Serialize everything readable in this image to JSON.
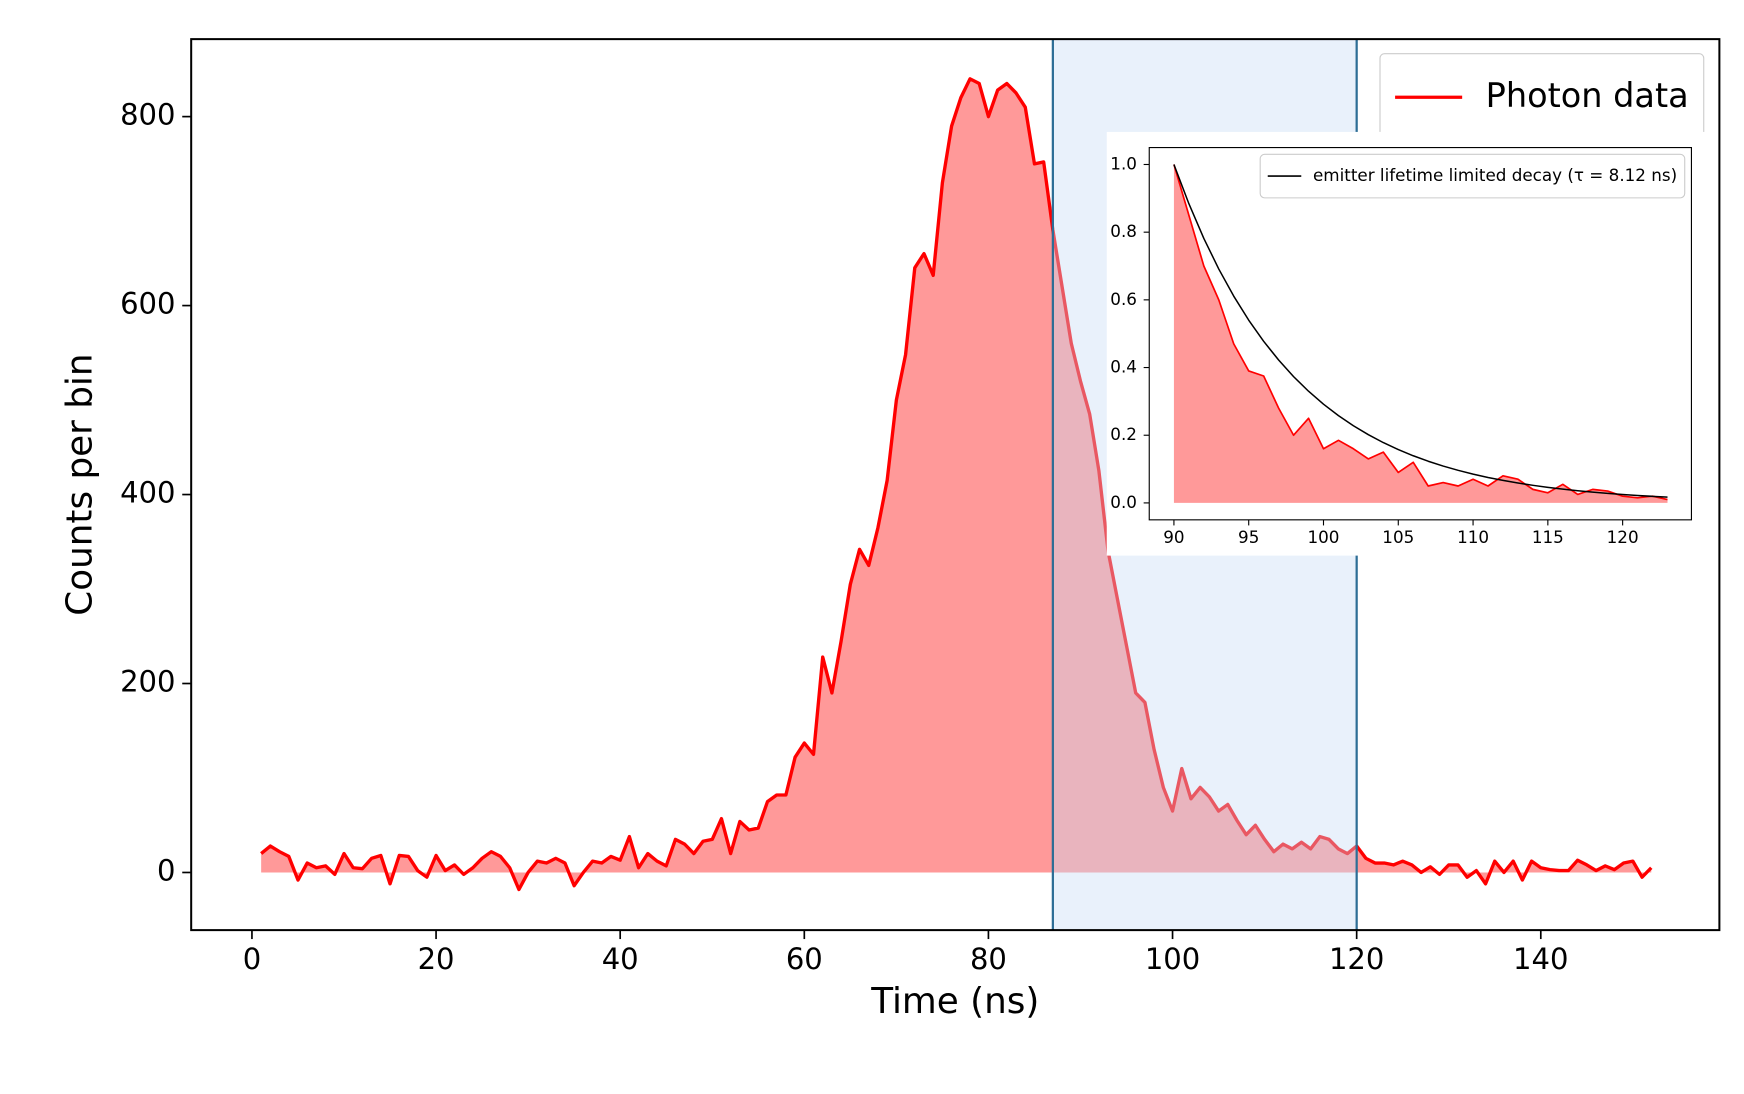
{
  "chart_data": [
    {
      "type": "area",
      "xlabel": "Time (ns)",
      "ylabel": "Counts per bin",
      "xlim": [
        -6.6,
        159.4
      ],
      "ylim": [
        -61,
        882
      ],
      "xticks": [
        0,
        20,
        40,
        60,
        80,
        100,
        120,
        140
      ],
      "yticks": [
        0,
        200,
        400,
        600,
        800
      ],
      "highlight_span": [
        87,
        120
      ],
      "span_color": "#c9dcf4",
      "span_line_color": "#2e6e96",
      "legend": "upper right",
      "series": [
        {
          "name": "Photon data",
          "type": "area",
          "color": "#ff0000",
          "fill": "#ff9999",
          "x": [
            1,
            2,
            3,
            4,
            5,
            6,
            7,
            8,
            9,
            10,
            11,
            12,
            13,
            14,
            15,
            16,
            17,
            18,
            19,
            20,
            21,
            22,
            23,
            24,
            25,
            26,
            27,
            28,
            29,
            30,
            31,
            32,
            33,
            34,
            35,
            36,
            37,
            38,
            39,
            40,
            41,
            42,
            43,
            44,
            45,
            46,
            47,
            48,
            49,
            50,
            51,
            52,
            53,
            54,
            55,
            56,
            57,
            58,
            59,
            60,
            61,
            62,
            63,
            64,
            65,
            66,
            67,
            68,
            69,
            70,
            71,
            72,
            73,
            74,
            75,
            76,
            77,
            78,
            79,
            80,
            81,
            82,
            83,
            84,
            85,
            86,
            87,
            88,
            89,
            90,
            91,
            92,
            93,
            94,
            95,
            96,
            97,
            98,
            99,
            100,
            101,
            102,
            103,
            104,
            105,
            106,
            107,
            108,
            109,
            110,
            111,
            112,
            113,
            114,
            115,
            116,
            117,
            118,
            119,
            120,
            121,
            122,
            123,
            124,
            125,
            126,
            127,
            128,
            129,
            130,
            131,
            132,
            133,
            134,
            135,
            136,
            137,
            138,
            139,
            140,
            141,
            142,
            143,
            144,
            145,
            146,
            147,
            148,
            149,
            150,
            151,
            152
          ],
          "values": [
            20,
            28,
            22,
            17,
            -8,
            10,
            5,
            7,
            -2,
            20,
            5,
            4,
            15,
            18,
            -12,
            18,
            17,
            2,
            -5,
            18,
            2,
            8,
            -2,
            5,
            15,
            22,
            17,
            5,
            -18,
            0,
            12,
            10,
            15,
            10,
            -14,
            0,
            12,
            10,
            17,
            13,
            38,
            5,
            20,
            12,
            7,
            35,
            30,
            20,
            33,
            35,
            57,
            20,
            54,
            45,
            47,
            75,
            82,
            82,
            122,
            137,
            125,
            228,
            190,
            245,
            305,
            342,
            325,
            365,
            415,
            500,
            548,
            640,
            655,
            632,
            730,
            790,
            820,
            840,
            835,
            800,
            828,
            835,
            825,
            810,
            750,
            752,
            680,
            620,
            560,
            520,
            485,
            425,
            340,
            290,
            240,
            190,
            180,
            130,
            90,
            65,
            110,
            78,
            90,
            80,
            65,
            72,
            55,
            40,
            50,
            35,
            22,
            30,
            25,
            32,
            25,
            38,
            35,
            25,
            20,
            28,
            15,
            10,
            10,
            8,
            12,
            8,
            0,
            6,
            -2,
            8,
            8,
            -5,
            2,
            -12,
            12,
            0,
            12,
            -8,
            12,
            5,
            3,
            2,
            2,
            13,
            8,
            2,
            7,
            3,
            10,
            12,
            -5,
            5
          ]
        }
      ]
    },
    {
      "type": "area",
      "xlim": [
        88.35,
        124.6
      ],
      "ylim": [
        -0.05,
        1.05
      ],
      "xticks": [
        90,
        95,
        100,
        105,
        110,
        115,
        120
      ],
      "yticks": [
        {
          "value": 0,
          "label": "0.0"
        },
        0.2,
        0.4,
        0.6,
        0.8,
        {
          "value": 1,
          "label": "1.0"
        }
      ],
      "legend": "upper right",
      "series": [
        {
          "type": "area",
          "color": "#ff0000",
          "fill": "#ff9999",
          "x": [
            90,
            91,
            92,
            93,
            94,
            95,
            96,
            97,
            98,
            99,
            100,
            101,
            102,
            103,
            104,
            105,
            106,
            107,
            108,
            109,
            110,
            111,
            112,
            113,
            114,
            115,
            116,
            117,
            118,
            119,
            120,
            121,
            122,
            123
          ],
          "values": [
            1.0,
            0.85,
            0.7,
            0.6,
            0.47,
            0.39,
            0.375,
            0.28,
            0.2,
            0.25,
            0.16,
            0.185,
            0.16,
            0.13,
            0.15,
            0.09,
            0.12,
            0.05,
            0.06,
            0.05,
            0.07,
            0.05,
            0.08,
            0.07,
            0.04,
            0.03,
            0.055,
            0.025,
            0.04,
            0.035,
            0.02,
            0.015,
            0.02,
            0.01
          ]
        },
        {
          "name": "emitter lifetime limited decay (τ = 8.12 ns)",
          "type": "line",
          "color": "#000000",
          "x": [
            90,
            91,
            92,
            93,
            94,
            95,
            96,
            97,
            98,
            99,
            100,
            101,
            102,
            103,
            104,
            105,
            106,
            107,
            108,
            109,
            110,
            111,
            112,
            113,
            114,
            115,
            116,
            117,
            118,
            119,
            120,
            121,
            122,
            123
          ],
          "values": [
            1.0,
            0.8841,
            0.7816,
            0.691,
            0.6109,
            0.5401,
            0.4775,
            0.4222,
            0.3732,
            0.33,
            0.2917,
            0.2579,
            0.228,
            0.2016,
            0.1782,
            0.1576,
            0.1393,
            0.1232,
            0.1089,
            0.0963,
            0.0851,
            0.0752,
            0.0665,
            0.0588,
            0.052,
            0.046,
            0.0406,
            0.0359,
            0.0318,
            0.0281,
            0.0248,
            0.0219,
            0.0194,
            0.0172
          ]
        }
      ]
    }
  ]
}
